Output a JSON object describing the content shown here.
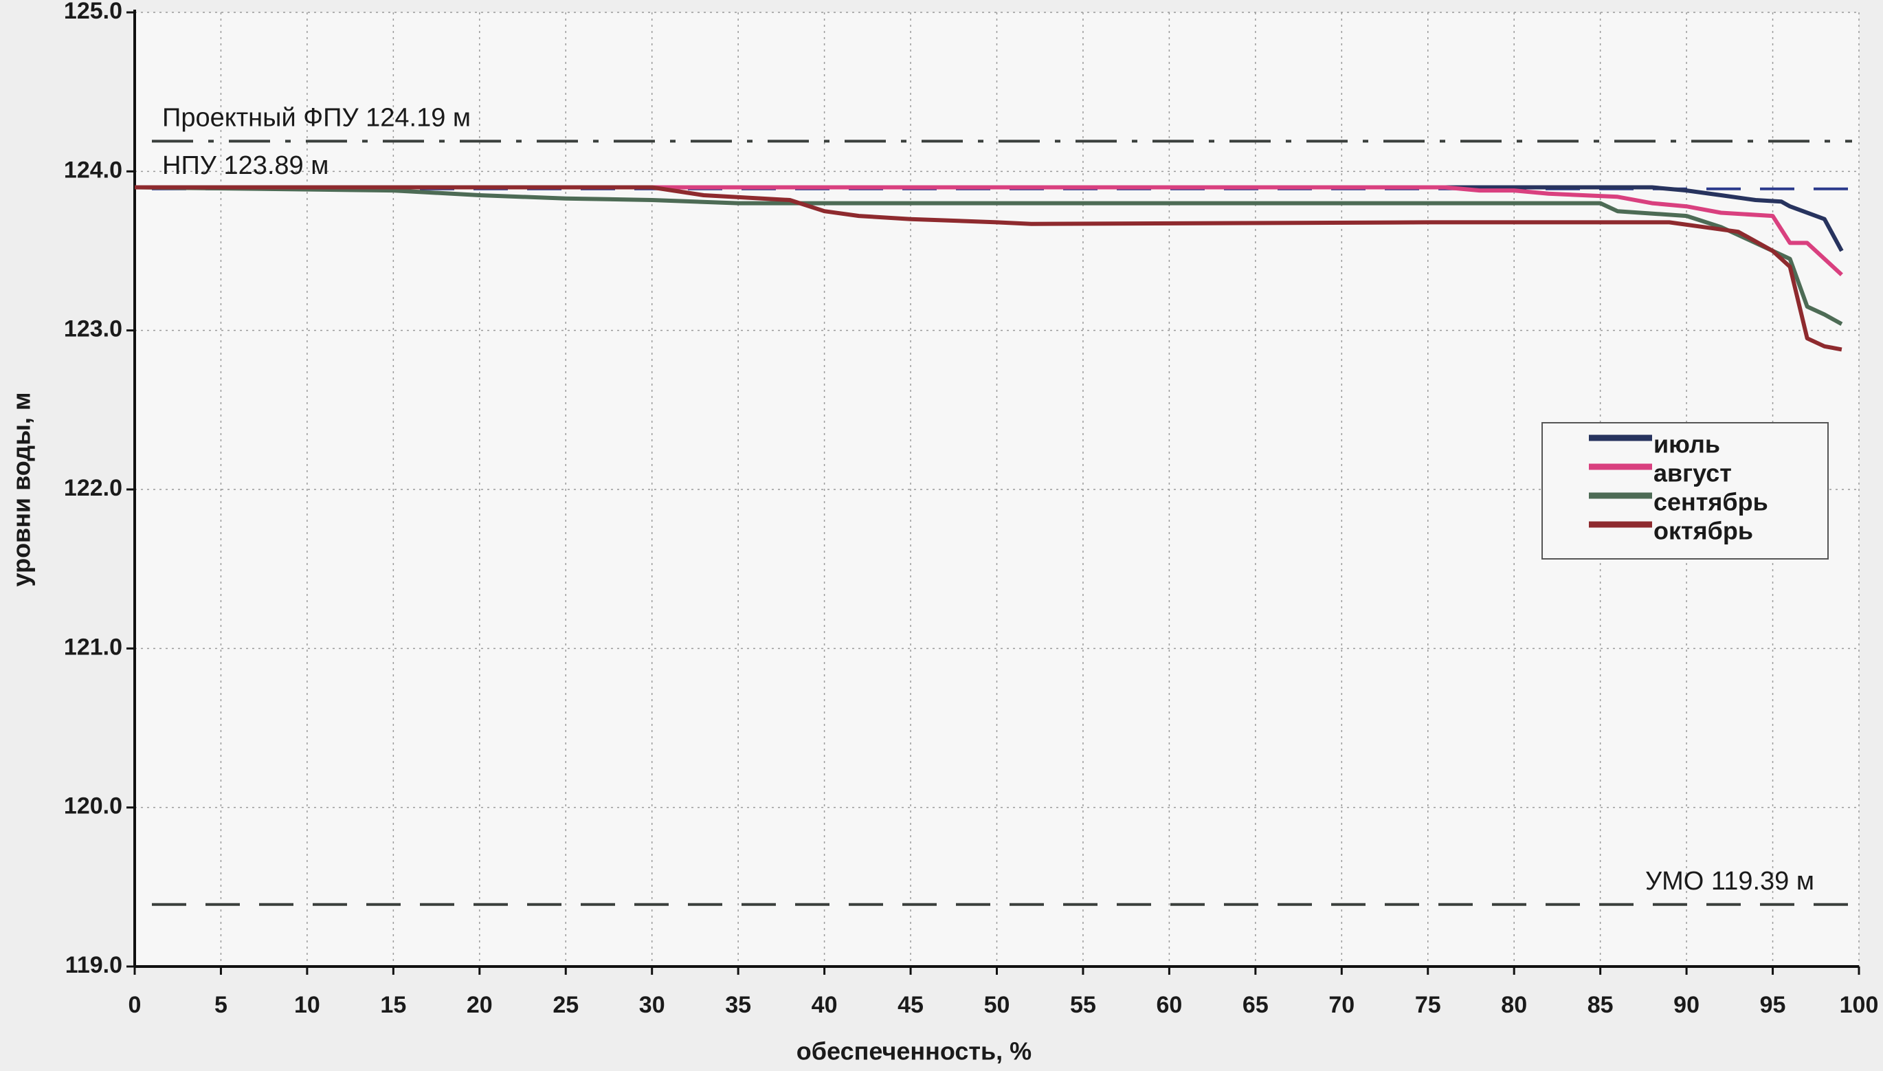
{
  "chart_data": {
    "type": "line",
    "y_label": "уровни воды, м",
    "x_label": "обеспеченность, %",
    "xlim": [
      0,
      100
    ],
    "xticks": [
      0,
      5,
      10,
      15,
      20,
      25,
      30,
      35,
      40,
      45,
      50,
      55,
      60,
      65,
      70,
      75,
      80,
      85,
      90,
      95,
      100
    ],
    "ylim": [
      119,
      125
    ],
    "yticks": [
      {
        "value": 119,
        "label": "119.0"
      },
      {
        "value": 120,
        "label": "120.0"
      },
      {
        "value": 121,
        "label": "121.0"
      },
      {
        "value": 122,
        "label": "122.0"
      },
      {
        "value": 123,
        "label": "123.0"
      },
      {
        "value": 124,
        "label": "124.0"
      },
      {
        "value": 125,
        "label": "125.0"
      }
    ],
    "grid": true,
    "legend": "right",
    "reference_lines": [
      {
        "label": "Проектный ФПУ 124.19 м",
        "value": 124.19,
        "color": "#3a3f3c",
        "style": "dashdot"
      },
      {
        "label": "НПУ 123.89 м",
        "value": 123.89,
        "color": "#2b3a8c",
        "style": "dashed"
      },
      {
        "label": "УМО 119.39 м",
        "value": 119.39,
        "color": "#3a3f3c",
        "style": "dashed"
      }
    ],
    "series": [
      {
        "name": "июль",
        "color": "#27335e",
        "x": [
          0,
          20,
          40,
          60,
          80,
          88,
          90,
          92,
          94,
          95.5,
          96,
          98,
          99
        ],
        "values": [
          123.9,
          123.9,
          123.9,
          123.9,
          123.9,
          123.9,
          123.88,
          123.85,
          123.82,
          123.81,
          123.78,
          123.7,
          123.5
        ]
      },
      {
        "name": "август",
        "color": "#d9407f",
        "x": [
          0,
          20,
          40,
          60,
          76,
          78,
          80,
          82,
          86,
          88,
          90,
          92,
          95,
          96,
          97,
          99
        ],
        "values": [
          123.9,
          123.9,
          123.9,
          123.9,
          123.9,
          123.88,
          123.88,
          123.86,
          123.84,
          123.8,
          123.78,
          123.74,
          123.72,
          123.55,
          123.55,
          123.35
        ]
      },
      {
        "name": "сентябрь",
        "color": "#4d6b55",
        "x": [
          0,
          15,
          20,
          25,
          30,
          35,
          50,
          70,
          85,
          86,
          90,
          92,
          94,
          96,
          97,
          98,
          99
        ],
        "values": [
          123.9,
          123.88,
          123.85,
          123.83,
          123.82,
          123.8,
          123.8,
          123.8,
          123.8,
          123.75,
          123.72,
          123.65,
          123.55,
          123.45,
          123.15,
          123.1,
          123.04
        ]
      },
      {
        "name": "октябрь",
        "color": "#8e2a2e",
        "x": [
          0,
          30,
          33,
          38,
          40,
          42,
          45,
          50,
          52,
          75,
          89,
          91,
          93,
          95,
          96,
          97,
          98,
          99
        ],
        "values": [
          123.9,
          123.9,
          123.85,
          123.82,
          123.75,
          123.72,
          123.7,
          123.68,
          123.67,
          123.68,
          123.68,
          123.65,
          123.62,
          123.5,
          123.4,
          122.95,
          122.9,
          122.88
        ]
      }
    ]
  }
}
